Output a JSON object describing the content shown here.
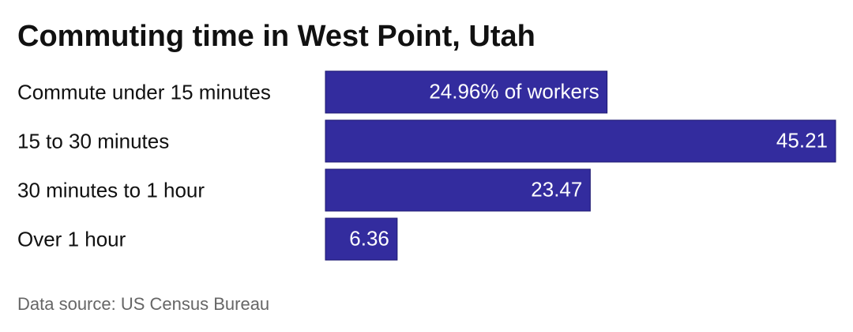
{
  "chart_data": {
    "type": "bar",
    "orientation": "horizontal",
    "title": "Commuting time in West Point, Utah",
    "categories": [
      "Commute under 15 minutes",
      "15 to 30 minutes",
      "30 minutes to 1 hour",
      "Over 1 hour"
    ],
    "values": [
      24.96,
      45.21,
      23.47,
      6.36
    ],
    "value_labels": [
      "24.96% of workers",
      "45.21",
      "23.47",
      "6.36"
    ],
    "color": "#332c9e",
    "source": "Data source: US Census Bureau"
  }
}
